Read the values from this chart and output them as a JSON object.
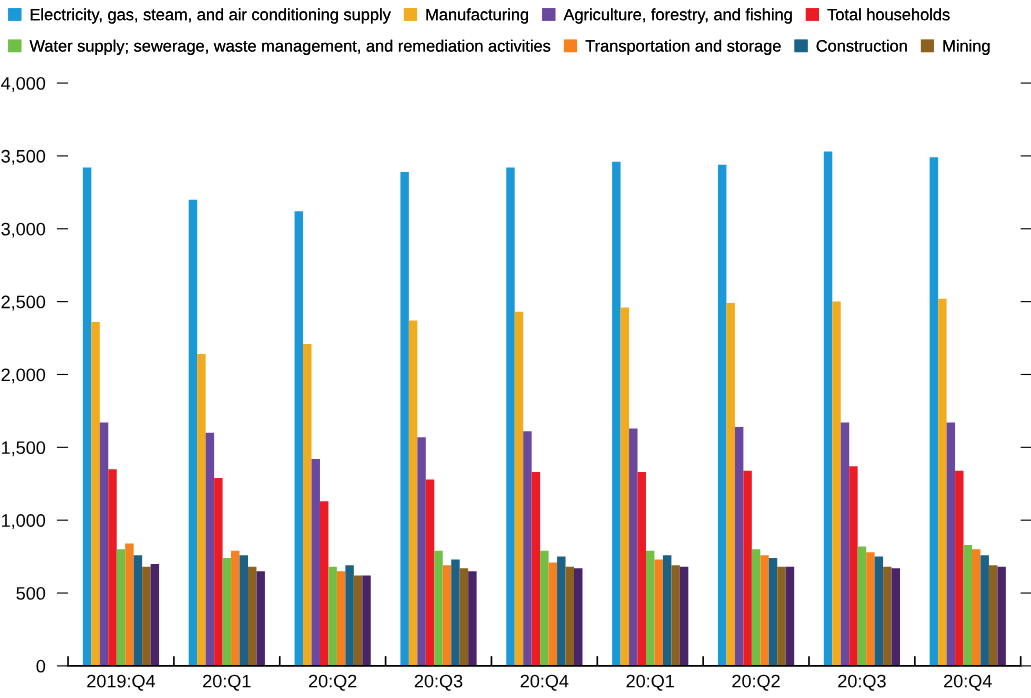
{
  "chart_data": {
    "type": "bar",
    "categories": [
      "2019:Q4",
      "20:Q1",
      "20:Q2",
      "20:Q3",
      "20:Q4",
      "20:Q1",
      "20:Q2",
      "20:Q3",
      "20:Q4"
    ],
    "series": [
      {
        "name": "Electricity, gas, steam, and air conditioning supply",
        "color": "#1b98d6",
        "values": [
          3420,
          3200,
          3120,
          3390,
          3420,
          3460,
          3440,
          3530,
          3490
        ]
      },
      {
        "name": "Manufacturing",
        "color": "#f0ab1e",
        "values": [
          2360,
          2140,
          2210,
          2370,
          2430,
          2460,
          2490,
          2500,
          2520
        ]
      },
      {
        "name": "Agriculture, forestry, and fishing",
        "color": "#6a48a0",
        "values": [
          1670,
          1600,
          1420,
          1570,
          1610,
          1630,
          1640,
          1670,
          1670
        ]
      },
      {
        "name": "Total households",
        "color": "#ec1c24",
        "values": [
          1350,
          1290,
          1130,
          1280,
          1330,
          1330,
          1340,
          1370,
          1340
        ]
      },
      {
        "name": "Water supply; sewerage, waste management, and remediation activities",
        "color": "#71bf44",
        "values": [
          800,
          740,
          680,
          790,
          790,
          790,
          800,
          820,
          830
        ]
      },
      {
        "name": "Transportation and storage",
        "color": "#f5821f",
        "values": [
          840,
          790,
          650,
          690,
          710,
          730,
          760,
          780,
          800
        ]
      },
      {
        "name": "Construction",
        "color": "#1b6286",
        "values": [
          760,
          760,
          690,
          730,
          750,
          760,
          740,
          750,
          760
        ]
      },
      {
        "name": "Mining",
        "color": "#8c6221",
        "values": [
          680,
          680,
          620,
          670,
          680,
          690,
          680,
          680,
          690
        ]
      },
      {
        "color": "#4a2468",
        "values": [
          700,
          650,
          620,
          650,
          670,
          680,
          680,
          670,
          680
        ]
      }
    ],
    "ylim": [
      0,
      4000
    ],
    "yticks": [
      0,
      500,
      {
        "value": 1000,
        "label": "1,000"
      },
      {
        "value": 1500,
        "label": "1,500"
      },
      {
        "value": 2000,
        "label": "2,000"
      },
      {
        "value": 2500,
        "label": "2,500"
      },
      {
        "value": 3000,
        "label": "3,000"
      },
      {
        "value": 3500,
        "label": "3,500"
      },
      {
        "value": 4000,
        "label": "4,000"
      }
    ],
    "legend": "top",
    "grid": false
  }
}
